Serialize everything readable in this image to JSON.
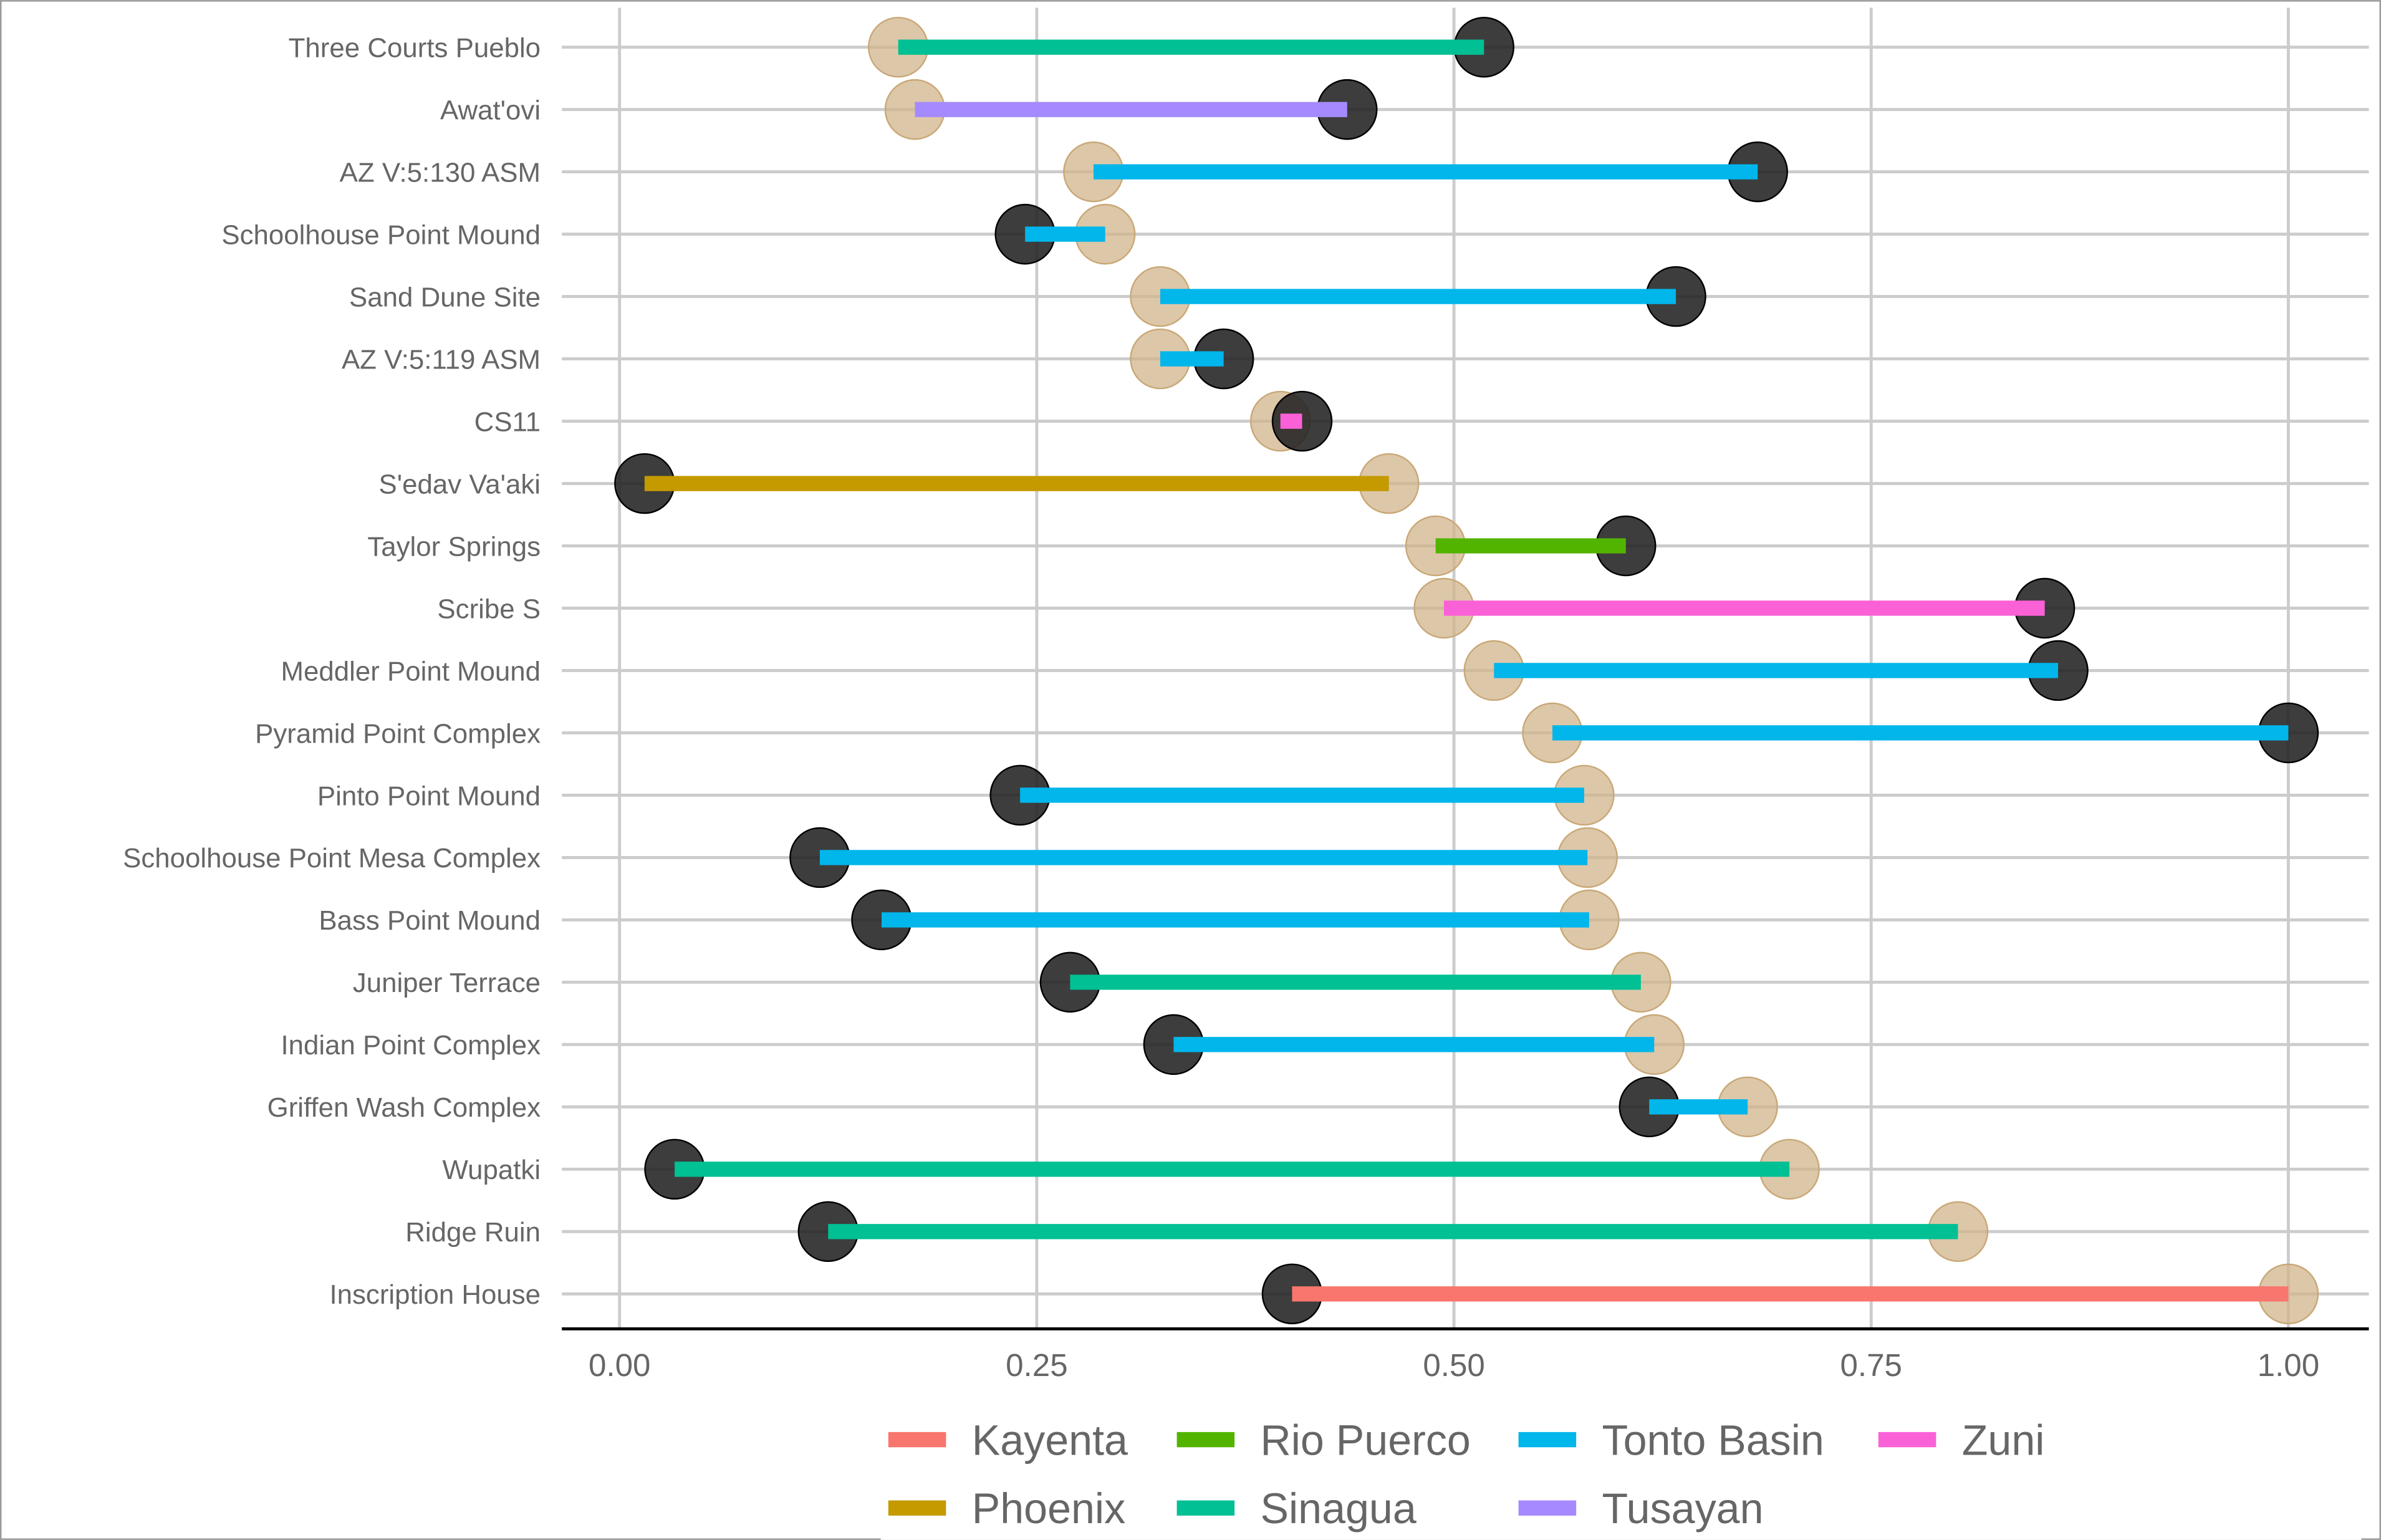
{
  "chart_data": {
    "type": "dumbbell",
    "title": "",
    "xlabel": "",
    "ylabel": "",
    "xlim": [
      0,
      1
    ],
    "x_ticks": [
      0,
      0.25,
      0.5,
      0.75,
      1
    ],
    "x_tick_labels": [
      "0.00",
      "0.25",
      "0.50",
      "0.75",
      "1.00"
    ],
    "grid": true,
    "legend_position": "bottom",
    "point_colors": {
      "start": "#D2B48C",
      "end": "#222222"
    },
    "legend": [
      {
        "name": "Kayenta",
        "color": "#F8766D"
      },
      {
        "name": "Phoenix",
        "color": "#C49A00"
      },
      {
        "name": "Rio Puerco",
        "color": "#53B400"
      },
      {
        "name": "Sinagua",
        "color": "#00C094"
      },
      {
        "name": "Tonto Basin",
        "color": "#00B6EB"
      },
      {
        "name": "Tusayan",
        "color": "#A58AFF"
      },
      {
        "name": "Zuni",
        "color": "#FB61D7"
      }
    ],
    "rows": [
      {
        "site": "Three Courts Pueblo",
        "region": "Sinagua",
        "tan": 0.167,
        "dark": 0.518
      },
      {
        "site": "Awat'ovi",
        "region": "Tusayan",
        "tan": 0.177,
        "dark": 0.436
      },
      {
        "site": "AZ V:5:130 ASM",
        "region": "Tonto Basin",
        "tan": 0.284,
        "dark": 0.682
      },
      {
        "site": "Schoolhouse Point Mound",
        "region": "Tonto Basin",
        "tan": 0.291,
        "dark": 0.243
      },
      {
        "site": "Sand Dune Site",
        "region": "Tonto Basin",
        "tan": 0.324,
        "dark": 0.633
      },
      {
        "site": "AZ V:5:119 ASM",
        "region": "Tonto Basin",
        "tan": 0.324,
        "dark": 0.362
      },
      {
        "site": "CS11",
        "region": "Zuni",
        "tan": 0.396,
        "dark": 0.409
      },
      {
        "site": "S'edav Va'aki",
        "region": "Phoenix",
        "tan": 0.461,
        "dark": 0.015
      },
      {
        "site": "Taylor Springs",
        "region": "Rio Puerco",
        "tan": 0.489,
        "dark": 0.603
      },
      {
        "site": "Scribe S",
        "region": "Zuni",
        "tan": 0.494,
        "dark": 0.854
      },
      {
        "site": "Meddler Point Mound",
        "region": "Tonto Basin",
        "tan": 0.524,
        "dark": 0.862
      },
      {
        "site": "Pyramid Point Complex",
        "region": "Tonto Basin",
        "tan": 0.559,
        "dark": 1.0
      },
      {
        "site": "Pinto Point Mound",
        "region": "Tonto Basin",
        "tan": 0.578,
        "dark": 0.24
      },
      {
        "site": "Schoolhouse Point Mesa Complex",
        "region": "Tonto Basin",
        "tan": 0.58,
        "dark": 0.12
      },
      {
        "site": "Bass Point Mound",
        "region": "Tonto Basin",
        "tan": 0.581,
        "dark": 0.157
      },
      {
        "site": "Juniper Terrace",
        "region": "Sinagua",
        "tan": 0.612,
        "dark": 0.27
      },
      {
        "site": "Indian Point Complex",
        "region": "Tonto Basin",
        "tan": 0.62,
        "dark": 0.332
      },
      {
        "site": "Griffen Wash Complex",
        "region": "Tonto Basin",
        "tan": 0.676,
        "dark": 0.617
      },
      {
        "site": "Wupatki",
        "region": "Sinagua",
        "tan": 0.701,
        "dark": 0.033
      },
      {
        "site": "Ridge Ruin",
        "region": "Sinagua",
        "tan": 0.802,
        "dark": 0.125
      },
      {
        "site": "Inscription House",
        "region": "Kayenta",
        "tan": 1.0,
        "dark": 0.403
      }
    ]
  }
}
